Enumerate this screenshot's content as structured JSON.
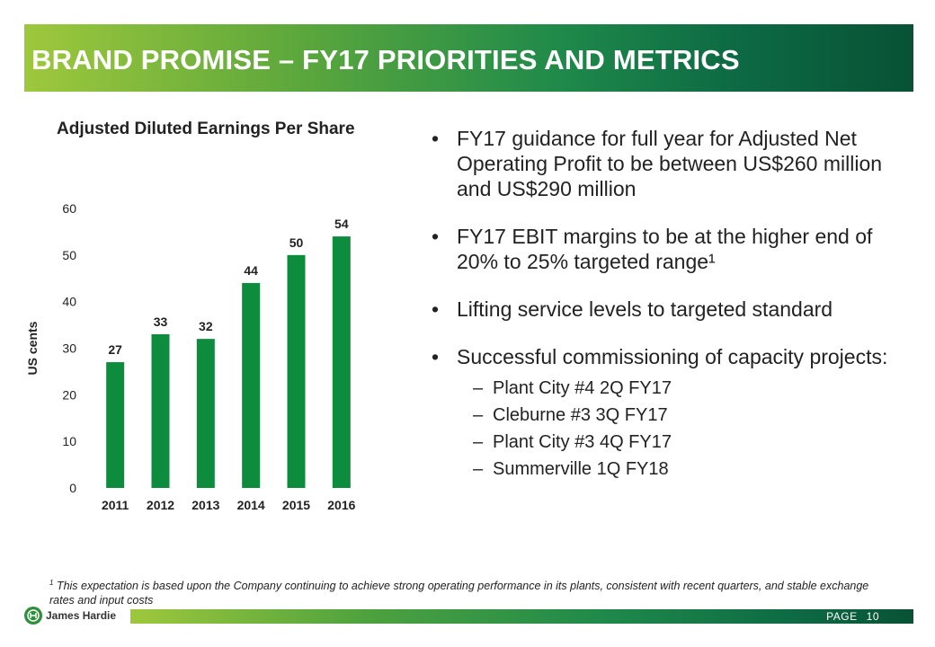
{
  "header": {
    "title": "BRAND PROMISE – FY17 PRIORITIES AND METRICS"
  },
  "chart_data": {
    "type": "bar",
    "title": "Adjusted Diluted Earnings Per Share",
    "ylabel": "US cents",
    "xlabel": "",
    "categories": [
      "2011",
      "2012",
      "2013",
      "2014",
      "2015",
      "2016"
    ],
    "values": [
      27,
      33,
      32,
      44,
      50,
      54
    ],
    "value_labels": [
      "27",
      "33",
      "32",
      "44",
      "50",
      "54"
    ],
    "ylim": [
      0,
      60
    ],
    "yticks": [
      0,
      10,
      20,
      30,
      40,
      50,
      60
    ],
    "ytick_labels": [
      "0",
      "10",
      "20",
      "30",
      "40",
      "50",
      "60"
    ],
    "grid": false,
    "bar_color": "#0e8c3e"
  },
  "bullets": [
    {
      "text": "FY17 guidance for full year for Adjusted Net Operating Profit to be between US$260 million and US$290 million"
    },
    {
      "text": "FY17 EBIT margins to be at the higher end of 20% to 25% targeted range¹"
    },
    {
      "text": "Lifting service levels to targeted standard"
    },
    {
      "text": "Successful commissioning of capacity projects:"
    }
  ],
  "sub_bullets": [
    "Plant City #4 2Q FY17",
    "Cleburne #3 3Q FY17",
    "Plant City #3 4Q FY17",
    "Summerville 1Q FY18"
  ],
  "bullet_marker": "•",
  "sub_marker": "–",
  "footnote": {
    "marker": "1",
    "text": "This expectation is based upon the Company continuing to achieve strong operating performance in its plants, consistent with recent quarters, and stable exchange rates and input costs"
  },
  "footer": {
    "page_label": "PAGE",
    "page_number": "10",
    "logo_text": "James Hardie",
    "logo_mark": "JH"
  },
  "colors": {
    "brand_green": "#0e8c3e",
    "dark_green": "#085235",
    "light_green": "#9ec83c"
  }
}
